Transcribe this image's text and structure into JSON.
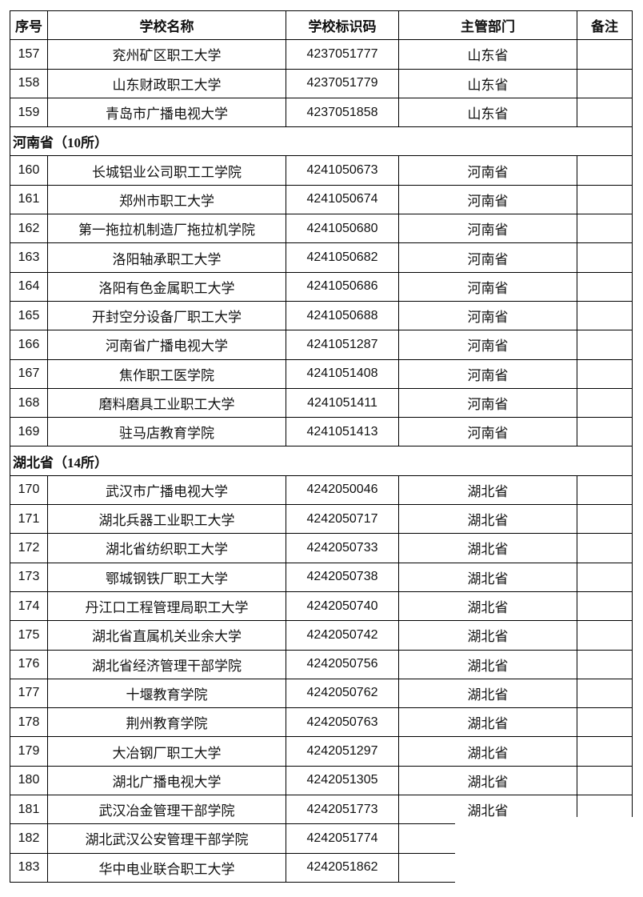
{
  "headers": [
    "序号",
    "学校名称",
    "学校标识码",
    "主管部门",
    "备注"
  ],
  "rows": [
    {
      "type": "row",
      "no": "157",
      "name": "兖州矿区职工大学",
      "code": "4237051777",
      "dept": "山东省"
    },
    {
      "type": "row",
      "no": "158",
      "name": "山东财政职工大学",
      "code": "4237051779",
      "dept": "山东省"
    },
    {
      "type": "row",
      "no": "159",
      "name": "青岛市广播电视大学",
      "code": "4237051858",
      "dept": "山东省"
    },
    {
      "type": "section",
      "label": "河南省（10所）"
    },
    {
      "type": "row",
      "no": "160",
      "name": "长城铝业公司职工工学院",
      "code": "4241050673",
      "dept": "河南省"
    },
    {
      "type": "row",
      "no": "161",
      "name": "郑州市职工大学",
      "code": "4241050674",
      "dept": "河南省"
    },
    {
      "type": "row",
      "no": "162",
      "name": "第一拖拉机制造厂拖拉机学院",
      "code": "4241050680",
      "dept": "河南省"
    },
    {
      "type": "row",
      "no": "163",
      "name": "洛阳轴承职工大学",
      "code": "4241050682",
      "dept": "河南省"
    },
    {
      "type": "row",
      "no": "164",
      "name": "洛阳有色金属职工大学",
      "code": "4241050686",
      "dept": "河南省"
    },
    {
      "type": "row",
      "no": "165",
      "name": "开封空分设备厂职工大学",
      "code": "4241050688",
      "dept": "河南省"
    },
    {
      "type": "row",
      "no": "166",
      "name": "河南省广播电视大学",
      "code": "4241051287",
      "dept": "河南省"
    },
    {
      "type": "row",
      "no": "167",
      "name": "焦作职工医学院",
      "code": "4241051408",
      "dept": "河南省"
    },
    {
      "type": "row",
      "no": "168",
      "name": "磨料磨具工业职工大学",
      "code": "4241051411",
      "dept": "河南省"
    },
    {
      "type": "row",
      "no": "169",
      "name": "驻马店教育学院",
      "code": "4241051413",
      "dept": "河南省"
    },
    {
      "type": "section",
      "label": "湖北省（14所）"
    },
    {
      "type": "row",
      "no": "170",
      "name": "武汉市广播电视大学",
      "code": "4242050046",
      "dept": "湖北省"
    },
    {
      "type": "row",
      "no": "171",
      "name": "湖北兵器工业职工大学",
      "code": "4242050717",
      "dept": "湖北省"
    },
    {
      "type": "row",
      "no": "172",
      "name": "湖北省纺织职工大学",
      "code": "4242050733",
      "dept": "湖北省"
    },
    {
      "type": "row",
      "no": "173",
      "name": "鄂城钢铁厂职工大学",
      "code": "4242050738",
      "dept": "湖北省"
    },
    {
      "type": "row",
      "no": "174",
      "name": "丹江口工程管理局职工大学",
      "code": "4242050740",
      "dept": "湖北省"
    },
    {
      "type": "row",
      "no": "175",
      "name": "湖北省直属机关业余大学",
      "code": "4242050742",
      "dept": "湖北省"
    },
    {
      "type": "row",
      "no": "176",
      "name": "湖北省经济管理干部学院",
      "code": "4242050756",
      "dept": "湖北省"
    },
    {
      "type": "row",
      "no": "177",
      "name": "十堰教育学院",
      "code": "4242050762",
      "dept": "湖北省"
    },
    {
      "type": "row",
      "no": "178",
      "name": "荆州教育学院",
      "code": "4242050763",
      "dept": "湖北省"
    },
    {
      "type": "row",
      "no": "179",
      "name": "大冶钢厂职工大学",
      "code": "4242051297",
      "dept": "湖北省"
    },
    {
      "type": "row",
      "no": "180",
      "name": "湖北广播电视大学",
      "code": "4242051305",
      "dept": "湖北省"
    },
    {
      "type": "row",
      "no": "181",
      "name": "武汉冶金管理干部学院",
      "code": "4242051773",
      "dept": "湖北省"
    },
    {
      "type": "row",
      "no": "182",
      "name": "湖北武汉公安管理干部学院",
      "code": "4242051774",
      "dept": ""
    },
    {
      "type": "row",
      "no": "183",
      "name": "华中电业联合职工大学",
      "code": "4242051862",
      "dept": ""
    }
  ]
}
